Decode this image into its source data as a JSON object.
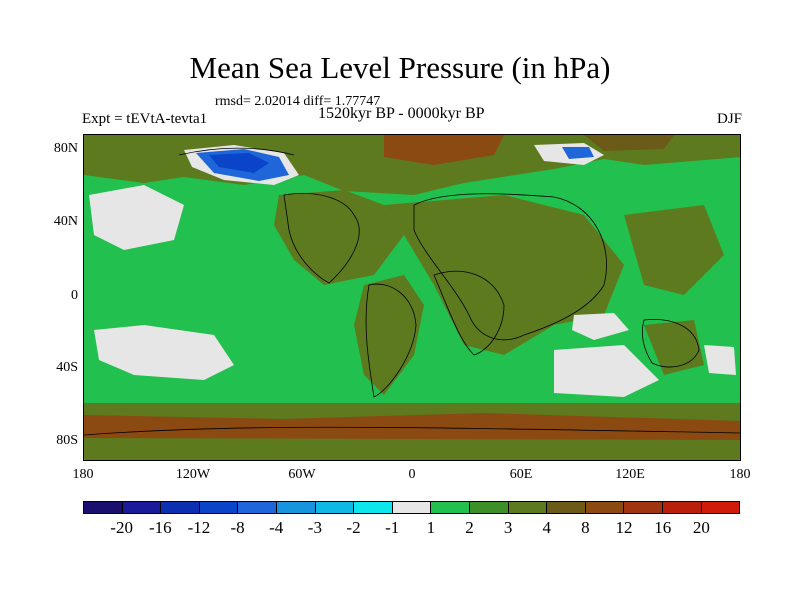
{
  "title": "Mean Sea Level Pressure (in hPa)",
  "stats": "rmsd= 2.02014 diff= 1.77747",
  "experiment": "Expt = tEVtA-tevta1",
  "period": "1520kyr BP - 0000kyr BP",
  "season": "DJF",
  "axes": {
    "lat_labels": [
      "80N",
      "40N",
      "0",
      "40S",
      "80S"
    ],
    "lon_labels": [
      "180",
      "120W",
      "60W",
      "0",
      "60E",
      "120E",
      "180"
    ]
  },
  "colorbar": {
    "labels": [
      "-20",
      "-16",
      "-12",
      "-8",
      "-4",
      "-3",
      "-2",
      "-1",
      "1",
      "2",
      "3",
      "4",
      "8",
      "12",
      "16",
      "20"
    ],
    "colors": [
      "#1a0f6e",
      "#1a1a9a",
      "#0b2fb0",
      "#0a44c8",
      "#1f66d8",
      "#1894de",
      "#10b8e6",
      "#0ee6ee",
      "#e6e6e6",
      "#22c04e",
      "#3d8f28",
      "#5d7a1e",
      "#6b5a18",
      "#8a4a12",
      "#a03410",
      "#b8200c",
      "#d01a0a"
    ]
  }
}
